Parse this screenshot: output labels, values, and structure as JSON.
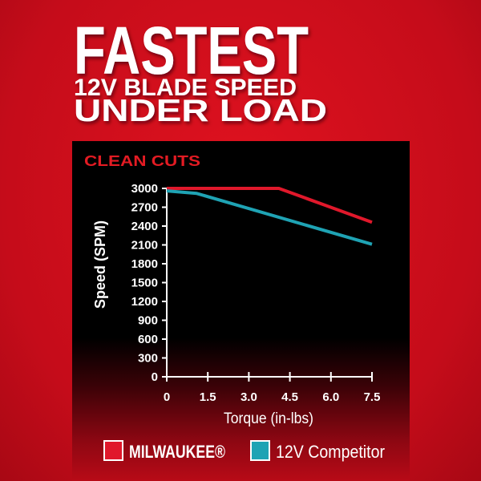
{
  "header": {
    "line1": "FASTEST",
    "line2": "12V BLADE SPEED",
    "line3": "UNDER LOAD"
  },
  "colors": {
    "background": "#d50f1f",
    "panel": "#000000",
    "milwaukee": "#e0182b",
    "competitor": "#1fa3b4"
  },
  "chart_data": {
    "type": "line",
    "title": "CLEAN CUTS",
    "xlabel": "Torque (in-lbs)",
    "ylabel": "Speed (SPM)",
    "xlim": [
      0,
      7.5
    ],
    "ylim": [
      0,
      3000
    ],
    "xticks": [
      "0",
      "1.5",
      "3.0",
      "4.5",
      "6.0",
      "7.5"
    ],
    "xtick_values": [
      0,
      1.5,
      3.0,
      4.5,
      6.0,
      7.5
    ],
    "yticks": [
      "0",
      "300",
      "600",
      "900",
      "1200",
      "1500",
      "1800",
      "2100",
      "2400",
      "2700",
      "3000"
    ],
    "ytick_values": [
      0,
      300,
      600,
      900,
      1200,
      1500,
      1800,
      2100,
      2400,
      2700,
      3000
    ],
    "grid": false,
    "legend_position": "bottom",
    "series": [
      {
        "name": "MILWAUKEE®",
        "color": "#e0182b",
        "x": [
          0,
          4.1,
          7.5
        ],
        "y": [
          3000,
          3000,
          2460
        ]
      },
      {
        "name": "12V Competitor",
        "color": "#1fa3b4",
        "x": [
          0,
          1.1,
          7.5
        ],
        "y": [
          2960,
          2920,
          2110
        ]
      }
    ]
  }
}
